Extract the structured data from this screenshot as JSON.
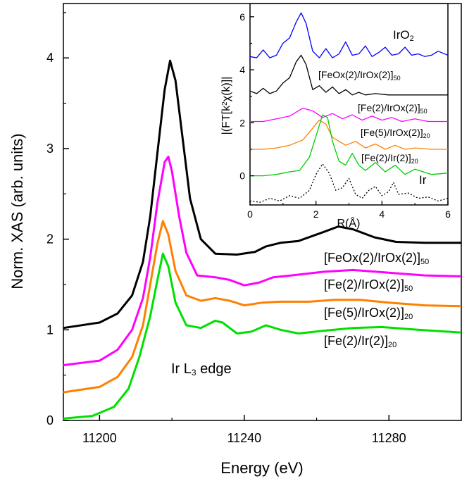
{
  "chart_data": [
    {
      "type": "line",
      "xlabel": "Energy (eV)",
      "ylabel": "Norm. XAS (arb. units)",
      "xlim": [
        11190,
        11300
      ],
      "ylim": [
        0,
        4.6
      ],
      "xticks": [
        11200,
        11240,
        11280
      ],
      "yticks": [
        0,
        1,
        2,
        3,
        4
      ],
      "annotation": {
        "text": "Ir L",
        "sub": "3",
        "tail": " edge"
      },
      "series": [
        {
          "name_main": "[FeOx(2)/IrOx(2)]",
          "name_sub": "50",
          "color": "#000000",
          "points": [
            [
              11190,
              1.02
            ],
            [
              11200,
              1.08
            ],
            [
              11205,
              1.18
            ],
            [
              11209,
              1.38
            ],
            [
              11212,
              1.75
            ],
            [
              11214,
              2.25
            ],
            [
              11216,
              2.95
            ],
            [
              11218,
              3.65
            ],
            [
              11219.5,
              3.97
            ],
            [
              11221,
              3.75
            ],
            [
              11223,
              3.1
            ],
            [
              11225,
              2.45
            ],
            [
              11228,
              2.0
            ],
            [
              11232,
              1.84
            ],
            [
              11238,
              1.83
            ],
            [
              11243,
              1.86
            ],
            [
              11246,
              1.92
            ],
            [
              11250,
              1.96
            ],
            [
              11255,
              1.98
            ],
            [
              11262,
              2.08
            ],
            [
              11266,
              2.14
            ],
            [
              11270,
              2.11
            ],
            [
              11276,
              2.02
            ],
            [
              11282,
              1.97
            ],
            [
              11290,
              1.96
            ],
            [
              11300,
              1.96
            ]
          ]
        },
        {
          "name_main": "[Fe(2)/IrOx(2)]",
          "name_sub": "50",
          "color": "#ff00ff",
          "points": [
            [
              11190,
              0.61
            ],
            [
              11200,
              0.66
            ],
            [
              11205,
              0.78
            ],
            [
              11209,
              1.0
            ],
            [
              11212,
              1.35
            ],
            [
              11214,
              1.8
            ],
            [
              11216,
              2.4
            ],
            [
              11218,
              2.85
            ],
            [
              11219,
              2.91
            ],
            [
              11220,
              2.75
            ],
            [
              11222,
              2.25
            ],
            [
              11224,
              1.85
            ],
            [
              11227,
              1.6
            ],
            [
              11232,
              1.58
            ],
            [
              11236,
              1.55
            ],
            [
              11240,
              1.49
            ],
            [
              11244,
              1.52
            ],
            [
              11248,
              1.58
            ],
            [
              11253,
              1.6
            ],
            [
              11262,
              1.64
            ],
            [
              11270,
              1.66
            ],
            [
              11280,
              1.63
            ],
            [
              11290,
              1.6
            ],
            [
              11300,
              1.59
            ]
          ]
        },
        {
          "name_main": "[Fe(5)/IrOx(2)]",
          "name_sub": "20",
          "color": "#ff8000",
          "points": [
            [
              11190,
              0.31
            ],
            [
              11200,
              0.37
            ],
            [
              11205,
              0.48
            ],
            [
              11209,
              0.7
            ],
            [
              11212,
              1.05
            ],
            [
              11214,
              1.5
            ],
            [
              11216,
              1.95
            ],
            [
              11217.5,
              2.2
            ],
            [
              11219,
              2.05
            ],
            [
              11221,
              1.65
            ],
            [
              11224,
              1.38
            ],
            [
              11228,
              1.32
            ],
            [
              11232,
              1.35
            ],
            [
              11236,
              1.32
            ],
            [
              11240,
              1.27
            ],
            [
              11245,
              1.3
            ],
            [
              11250,
              1.31
            ],
            [
              11258,
              1.31
            ],
            [
              11265,
              1.33
            ],
            [
              11272,
              1.33
            ],
            [
              11280,
              1.3
            ],
            [
              11290,
              1.27
            ],
            [
              11300,
              1.26
            ]
          ]
        },
        {
          "name_main": "[Fe(2)/Ir(2)]",
          "name_sub": "20",
          "color": "#00e000",
          "points": [
            [
              11190,
              0.02
            ],
            [
              11198,
              0.05
            ],
            [
              11204,
              0.15
            ],
            [
              11208,
              0.35
            ],
            [
              11211,
              0.7
            ],
            [
              11214,
              1.15
            ],
            [
              11216,
              1.55
            ],
            [
              11217.5,
              1.84
            ],
            [
              11219,
              1.7
            ],
            [
              11221,
              1.3
            ],
            [
              11224,
              1.05
            ],
            [
              11228,
              1.02
            ],
            [
              11232,
              1.1
            ],
            [
              11234,
              1.08
            ],
            [
              11238,
              0.96
            ],
            [
              11242,
              0.98
            ],
            [
              11246,
              1.05
            ],
            [
              11250,
              1.0
            ],
            [
              11255,
              0.96
            ],
            [
              11262,
              0.99
            ],
            [
              11270,
              1.02
            ],
            [
              11278,
              1.03
            ],
            [
              11288,
              1.0
            ],
            [
              11300,
              0.97
            ]
          ]
        }
      ]
    },
    {
      "type": "line",
      "xlabel": "R(Å)",
      "ylabel_pre": "|(FT[k",
      "ylabel_sup": "2",
      "ylabel_post": "χ(k)]|",
      "xlim": [
        0,
        6
      ],
      "ylim": [
        -1.1,
        6.5
      ],
      "xticks": [
        0,
        2,
        4,
        6
      ],
      "yticks": [
        0,
        2,
        4,
        6
      ],
      "series": [
        {
          "name_main": "IrO",
          "name_sub": "2",
          "color": "#0000ff",
          "dashed": false,
          "points": [
            [
              0,
              4.5
            ],
            [
              0.2,
              4.45
            ],
            [
              0.4,
              4.75
            ],
            [
              0.6,
              4.45
            ],
            [
              0.8,
              4.55
            ],
            [
              1.0,
              5.0
            ],
            [
              1.2,
              5.2
            ],
            [
              1.4,
              5.8
            ],
            [
              1.55,
              6.15
            ],
            [
              1.7,
              5.75
            ],
            [
              1.9,
              4.7
            ],
            [
              2.1,
              4.45
            ],
            [
              2.3,
              4.8
            ],
            [
              2.5,
              4.45
            ],
            [
              2.7,
              4.6
            ],
            [
              2.9,
              5.05
            ],
            [
              3.1,
              4.55
            ],
            [
              3.3,
              4.6
            ],
            [
              3.5,
              4.9
            ],
            [
              3.7,
              4.5
            ],
            [
              3.9,
              4.65
            ],
            [
              4.1,
              4.85
            ],
            [
              4.3,
              4.55
            ],
            [
              4.5,
              4.6
            ],
            [
              4.7,
              4.85
            ],
            [
              4.9,
              4.55
            ],
            [
              5.1,
              4.6
            ],
            [
              5.3,
              4.5
            ],
            [
              5.5,
              4.55
            ],
            [
              5.7,
              4.7
            ],
            [
              6.0,
              4.55
            ]
          ]
        },
        {
          "name_main": "[FeOx(2)/IrOx(2)]",
          "name_sub": "50",
          "color": "#000000",
          "dashed": false,
          "points": [
            [
              0,
              3.2
            ],
            [
              0.2,
              3.1
            ],
            [
              0.4,
              3.3
            ],
            [
              0.6,
              3.1
            ],
            [
              0.8,
              3.2
            ],
            [
              1.0,
              3.5
            ],
            [
              1.2,
              3.7
            ],
            [
              1.4,
              4.3
            ],
            [
              1.55,
              4.55
            ],
            [
              1.7,
              4.2
            ],
            [
              1.9,
              3.25
            ],
            [
              2.1,
              3.4
            ],
            [
              2.3,
              3.15
            ],
            [
              2.5,
              3.35
            ],
            [
              2.7,
              3.1
            ],
            [
              2.9,
              3.25
            ],
            [
              3.1,
              3.05
            ],
            [
              3.3,
              3.15
            ],
            [
              3.5,
              3.05
            ],
            [
              3.8,
              3.1
            ],
            [
              4.2,
              3.05
            ],
            [
              6.0,
              3.05
            ]
          ]
        },
        {
          "name_main": "[Fe(2)/IrOx(2)]",
          "name_sub": "50",
          "color": "#ff00ff",
          "dashed": false,
          "points": [
            [
              0,
              2.05
            ],
            [
              0.4,
              2.05
            ],
            [
              0.8,
              2.15
            ],
            [
              1.2,
              2.25
            ],
            [
              1.6,
              2.55
            ],
            [
              1.9,
              2.45
            ],
            [
              2.2,
              2.2
            ],
            [
              2.5,
              2.35
            ],
            [
              2.8,
              2.15
            ],
            [
              3.1,
              2.3
            ],
            [
              3.4,
              2.1
            ],
            [
              3.7,
              2.25
            ],
            [
              4.0,
              2.1
            ],
            [
              4.3,
              2.2
            ],
            [
              4.6,
              2.05
            ],
            [
              5.0,
              2.15
            ],
            [
              5.4,
              2.05
            ],
            [
              6.0,
              2.05
            ]
          ]
        },
        {
          "name_main": "[Fe(5)/IrOx(2)]",
          "name_sub": "20",
          "color": "#ff8000",
          "dashed": false,
          "points": [
            [
              0,
              1.0
            ],
            [
              0.4,
              1.0
            ],
            [
              0.8,
              1.05
            ],
            [
              1.2,
              1.15
            ],
            [
              1.6,
              1.35
            ],
            [
              1.9,
              1.8
            ],
            [
              2.1,
              2.1
            ],
            [
              2.3,
              1.95
            ],
            [
              2.5,
              1.45
            ],
            [
              2.7,
              1.3
            ],
            [
              2.9,
              1.15
            ],
            [
              3.2,
              1.3
            ],
            [
              3.5,
              1.05
            ],
            [
              3.8,
              1.2
            ],
            [
              4.1,
              1.0
            ],
            [
              4.4,
              1.15
            ],
            [
              4.7,
              1.0
            ],
            [
              5.0,
              1.05
            ],
            [
              5.5,
              1.0
            ],
            [
              6.0,
              1.0
            ]
          ]
        },
        {
          "name_main": "[Fe(2)/Ir(2)]",
          "name_sub": "20",
          "color": "#00cc00",
          "dashed": false,
          "points": [
            [
              0,
              0
            ],
            [
              0.4,
              0.0
            ],
            [
              0.8,
              0.05
            ],
            [
              1.2,
              0.15
            ],
            [
              1.5,
              0.2
            ],
            [
              1.8,
              0.7
            ],
            [
              2.0,
              1.5
            ],
            [
              2.2,
              2.3
            ],
            [
              2.35,
              2.2
            ],
            [
              2.5,
              1.3
            ],
            [
              2.7,
              0.55
            ],
            [
              2.9,
              0.4
            ],
            [
              3.1,
              0.85
            ],
            [
              3.3,
              0.4
            ],
            [
              3.5,
              0.2
            ],
            [
              3.8,
              0.5
            ],
            [
              4.1,
              0.15
            ],
            [
              4.4,
              0.4
            ],
            [
              4.7,
              0.05
            ],
            [
              5.0,
              0.25
            ],
            [
              5.5,
              0.05
            ],
            [
              6.0,
              0.1
            ]
          ]
        },
        {
          "name_main": "Ir",
          "name_sub": "",
          "color": "#000000",
          "dashed": true,
          "points": [
            [
              0,
              -0.95
            ],
            [
              0.3,
              -1.0
            ],
            [
              0.6,
              -0.85
            ],
            [
              0.9,
              -0.95
            ],
            [
              1.2,
              -0.75
            ],
            [
              1.5,
              -0.85
            ],
            [
              1.8,
              -0.55
            ],
            [
              2.0,
              0.05
            ],
            [
              2.2,
              0.45
            ],
            [
              2.4,
              0.1
            ],
            [
              2.6,
              -0.55
            ],
            [
              2.8,
              -0.45
            ],
            [
              3.0,
              -0.1
            ],
            [
              3.2,
              -0.7
            ],
            [
              3.4,
              -0.85
            ],
            [
              3.6,
              -0.55
            ],
            [
              3.8,
              -0.4
            ],
            [
              4.0,
              -0.75
            ],
            [
              4.2,
              -0.6
            ],
            [
              4.35,
              -0.25
            ],
            [
              4.5,
              -0.7
            ],
            [
              4.8,
              -0.65
            ],
            [
              5.1,
              -0.85
            ],
            [
              5.4,
              -0.8
            ],
            [
              5.7,
              -0.95
            ],
            [
              6.0,
              -0.85
            ]
          ]
        }
      ]
    }
  ]
}
